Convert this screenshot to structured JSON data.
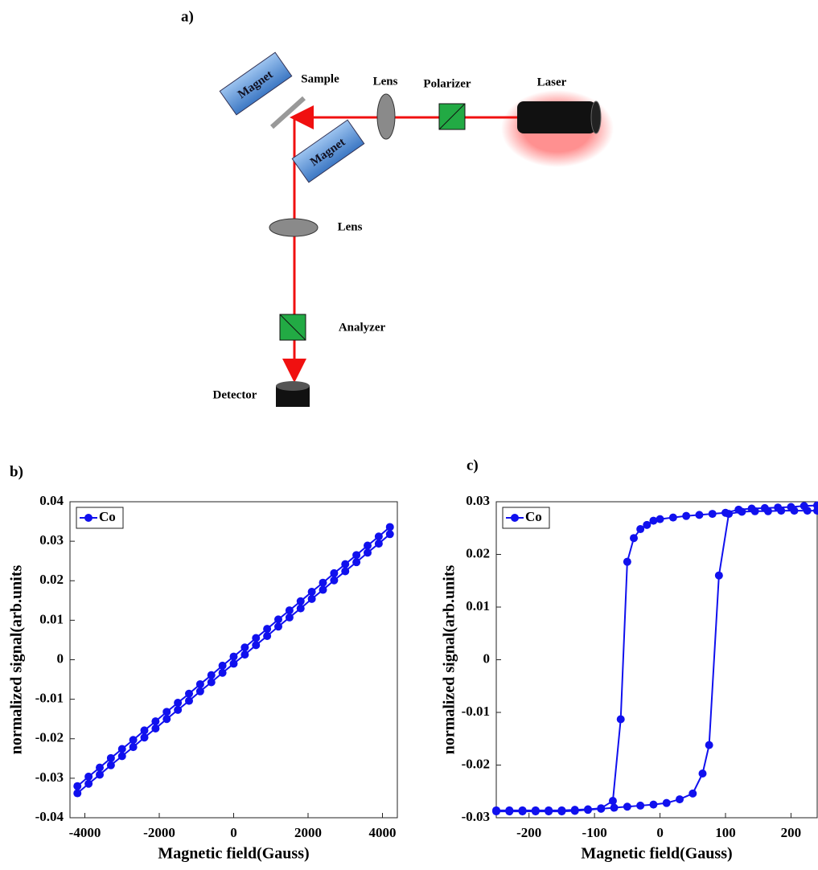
{
  "diagram": {
    "panel_label": "a)",
    "labels": [
      "Magnet",
      "Sample",
      "Lens",
      "Polarizer",
      "Laser",
      "Magnet",
      "Lens",
      "Analyzer",
      "Detector"
    ]
  },
  "chart_data": [
    {
      "type": "line",
      "panel_label": "b)",
      "xlabel": "Magnetic field(Gauss)",
      "ylabel": "normalized signal(arb.units",
      "xlim": [
        -4400,
        4400
      ],
      "xticks": [
        -4000,
        -2000,
        0,
        2000,
        4000
      ],
      "ylim": [
        -0.04,
        0.04
      ],
      "yticks": [
        -0.04,
        -0.03,
        -0.02,
        -0.01,
        0,
        0.01,
        0.02,
        0.03,
        0.04
      ],
      "legend": "upper left",
      "series": [
        {
          "name": "Co",
          "color": "#1010ee",
          "x": [
            -4200,
            -3900,
            -3600,
            -3300,
            -3000,
            -2700,
            -2400,
            -2100,
            -1800,
            -1500,
            -1200,
            -900,
            -600,
            -300,
            0,
            300,
            600,
            900,
            1200,
            1500,
            1800,
            2100,
            2400,
            2700,
            3000,
            3300,
            3600,
            3900,
            4200,
            4200,
            3900,
            3600,
            3300,
            3000,
            2700,
            2400,
            2100,
            1800,
            1500,
            1200,
            900,
            600,
            300,
            0,
            -300,
            -600,
            -900,
            -1200,
            -1500,
            -1800,
            -2100,
            -2400,
            -2700,
            -3000,
            -3300,
            -3600,
            -3900,
            -4200
          ],
          "values": [
            -0.0338,
            -0.0314,
            -0.0291,
            -0.0267,
            -0.0244,
            -0.0221,
            -0.0197,
            -0.0174,
            -0.015,
            -0.0127,
            -0.0104,
            -0.008,
            -0.0057,
            -0.0033,
            -0.001,
            0.0013,
            0.0037,
            0.006,
            0.0084,
            0.0107,
            0.013,
            0.0154,
            0.0177,
            0.0201,
            0.0224,
            0.0247,
            0.0271,
            0.0294,
            0.0318,
            0.0336,
            0.0312,
            0.0289,
            0.0265,
            0.0242,
            0.0219,
            0.0195,
            0.0172,
            0.0148,
            0.0125,
            0.0102,
            0.0078,
            0.0055,
            0.0031,
            0.0008,
            -0.0015,
            -0.0039,
            -0.0062,
            -0.0086,
            -0.0109,
            -0.0132,
            -0.0156,
            -0.0179,
            -0.0203,
            -0.0226,
            -0.0249,
            -0.0273,
            -0.0296,
            -0.032
          ]
        }
      ]
    },
    {
      "type": "line",
      "panel_label": "c)",
      "xlabel": "Magnetic field(Gauss)",
      "ylabel": "normalized signal(arb.units",
      "xlim": [
        -250,
        240
      ],
      "xticks": [
        -200,
        -100,
        0,
        100,
        200
      ],
      "ylim": [
        -0.03,
        0.03
      ],
      "yticks": [
        -0.03,
        -0.02,
        -0.01,
        0,
        0.01,
        0.02,
        0.03
      ],
      "legend": "upper left",
      "series": [
        {
          "name": "Co",
          "color": "#1010ee",
          "x": [
            -250,
            -230,
            -210,
            -190,
            -170,
            -150,
            -130,
            -110,
            -90,
            -70,
            -50,
            -30,
            -10,
            10,
            30,
            50,
            65,
            75,
            90,
            105,
            125,
            145,
            165,
            185,
            205,
            225,
            240,
            240,
            220,
            200,
            180,
            160,
            140,
            120,
            100,
            80,
            60,
            40,
            20,
            0,
            -10,
            -20,
            -30,
            -40,
            -50,
            -60,
            -72,
            -90,
            -110,
            -130,
            -150,
            -170,
            -190,
            -210,
            -230,
            -250
          ],
          "values": [
            -0.0288,
            -0.0288,
            -0.0288,
            -0.0288,
            -0.0288,
            -0.0288,
            -0.0287,
            -0.0285,
            -0.0283,
            -0.0281,
            -0.0279,
            -0.0277,
            -0.0275,
            -0.0272,
            -0.0265,
            -0.0254,
            -0.0216,
            -0.0162,
            0.016,
            0.0277,
            0.0281,
            0.0282,
            0.0282,
            0.0283,
            0.0283,
            0.0283,
            0.0283,
            0.0293,
            0.0292,
            0.029,
            0.0289,
            0.0288,
            0.0287,
            0.0285,
            0.0279,
            0.0277,
            0.0275,
            0.0273,
            0.027,
            0.0267,
            0.0264,
            0.0256,
            0.0248,
            0.0231,
            0.0186,
            -0.0113,
            -0.0268,
            -0.0282,
            -0.0284,
            -0.0285,
            -0.0286,
            -0.0286,
            -0.0286,
            -0.0286,
            -0.0286,
            -0.0286
          ]
        }
      ]
    }
  ]
}
